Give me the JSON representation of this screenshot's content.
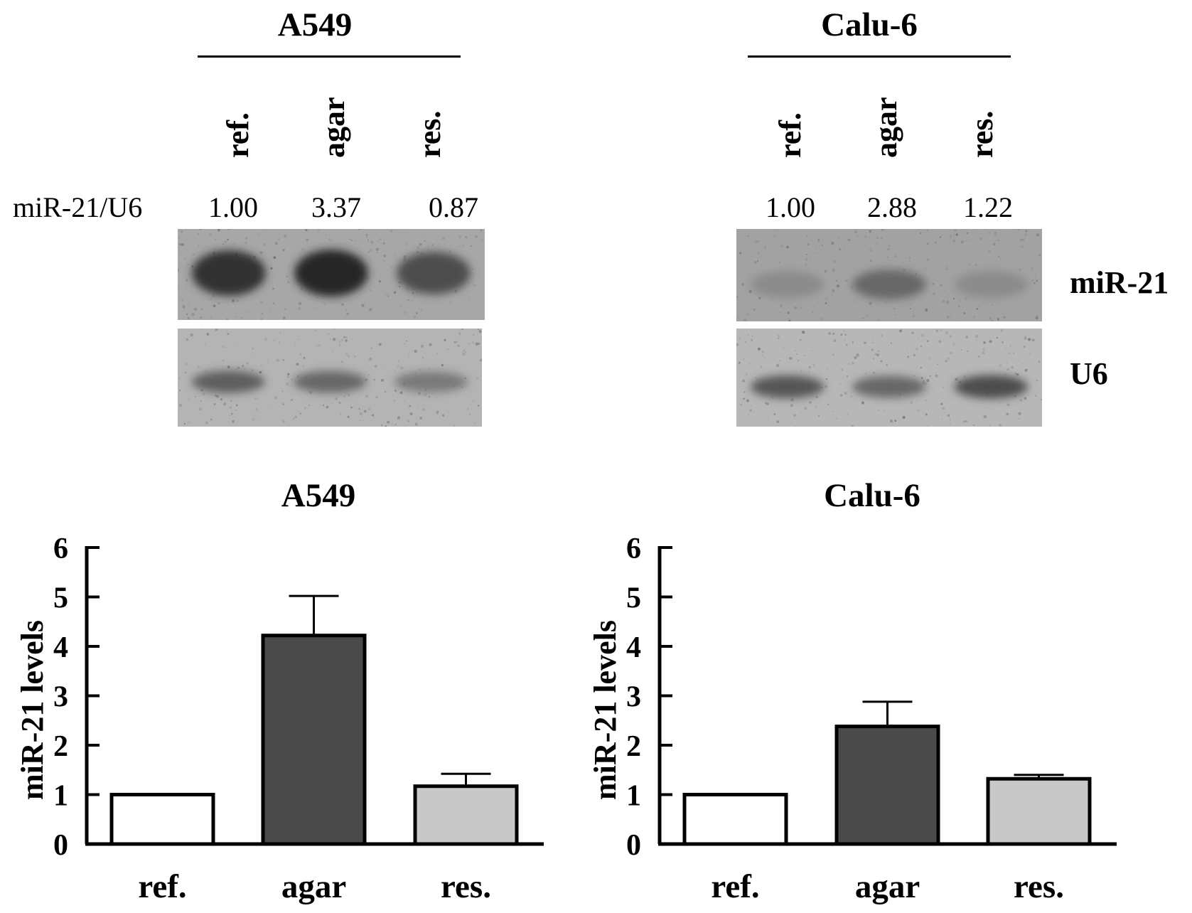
{
  "blot_panels": [
    {
      "title": "A549",
      "lanes": [
        "ref.",
        "agar",
        "res."
      ],
      "ratio_label": "miR-21/U6",
      "ratios": [
        "1.00",
        "3.37",
        "0.87"
      ],
      "mir21_band_intensity": [
        0.85,
        0.92,
        0.7
      ],
      "u6_band_intensity": [
        0.6,
        0.55,
        0.45
      ]
    },
    {
      "title": "Calu-6",
      "lanes": [
        "ref.",
        "agar",
        "res."
      ],
      "ratios": [
        "1.00",
        "2.88",
        "1.22"
      ],
      "mir21_band_intensity": [
        0.35,
        0.55,
        0.35
      ],
      "u6_band_intensity": [
        0.65,
        0.55,
        0.7
      ],
      "band_labels": [
        "miR-21",
        "U6"
      ]
    }
  ],
  "chart_data": [
    {
      "type": "bar",
      "title": "A549",
      "categories": [
        "ref.",
        "agar",
        "res."
      ],
      "values": [
        1.0,
        4.22,
        1.17
      ],
      "errors": [
        0,
        0.8,
        0.25
      ],
      "colors": [
        "#ffffff",
        "#4a4a4a",
        "#c8c8c8"
      ],
      "ylabel": "miR-21 levels",
      "ylim": [
        0,
        6
      ],
      "yticks": [
        "0",
        "1",
        "2",
        "3",
        "4",
        "5",
        "6"
      ]
    },
    {
      "type": "bar",
      "title": "Calu-6",
      "categories": [
        "ref.",
        "agar",
        "res."
      ],
      "values": [
        1.0,
        2.38,
        1.32
      ],
      "errors": [
        0,
        0.5,
        0.08
      ],
      "colors": [
        "#ffffff",
        "#4a4a4a",
        "#c8c8c8"
      ],
      "ylabel": "miR-21 levels",
      "ylim": [
        0,
        6
      ],
      "yticks": [
        "0",
        "1",
        "2",
        "3",
        "4",
        "5",
        "6"
      ]
    }
  ]
}
